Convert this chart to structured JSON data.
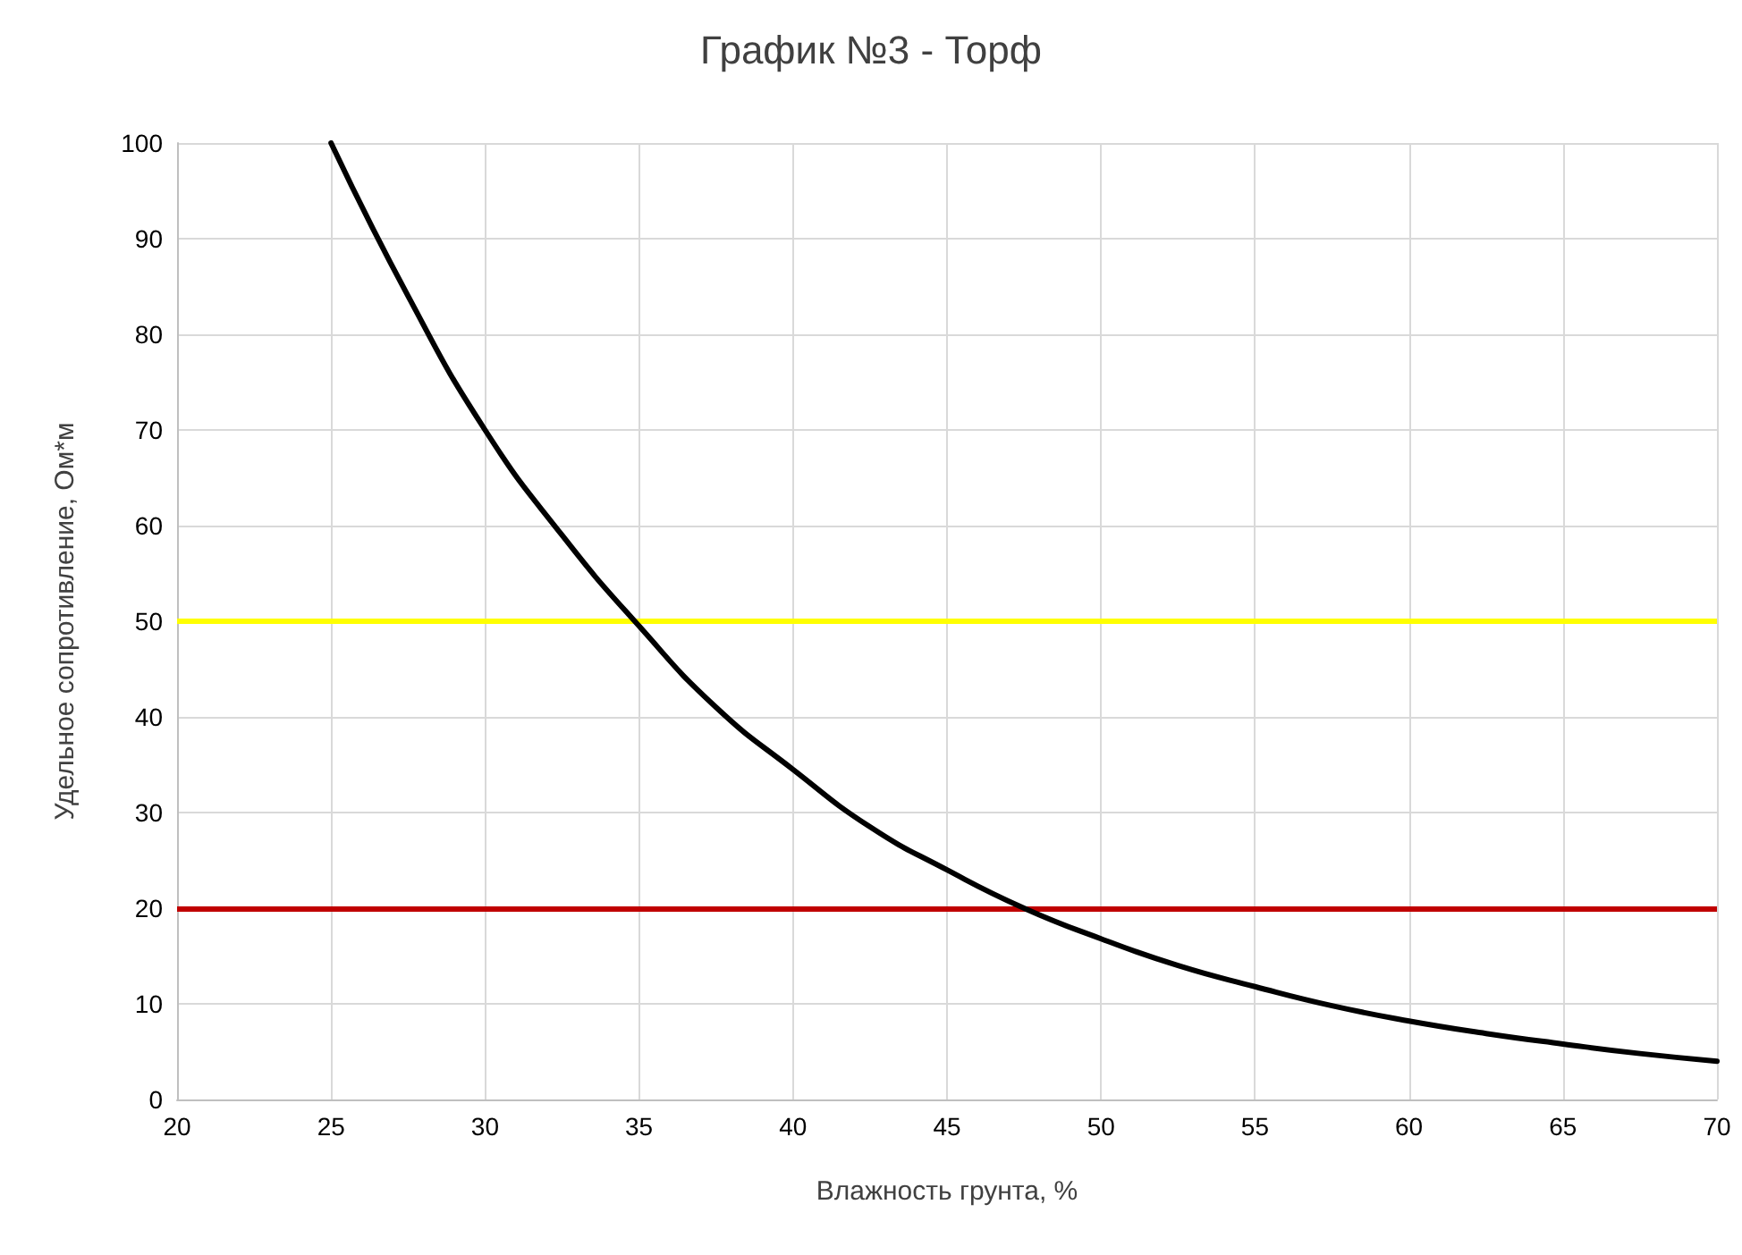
{
  "chart_data": {
    "type": "line",
    "title": "График №3 - Торф",
    "xlabel": "Влажность грунта, %",
    "ylabel": "Удельное сопротивление, Ом*м",
    "x": [
      25,
      27.5,
      30,
      32.5,
      35,
      37.5,
      40,
      42.5,
      45,
      47.5,
      50,
      52.5,
      55,
      57.5,
      60,
      62.5,
      65,
      67.5,
      70
    ],
    "series": [
      {
        "color": "#000000",
        "values": [
          100,
          84,
          70,
          59,
          49.5,
          41,
          34.5,
          28.5,
          24,
          20,
          16.8,
          14,
          11.8,
          9.8,
          8.2,
          6.9,
          5.8,
          4.8,
          4
        ]
      }
    ],
    "xlim": [
      20,
      70
    ],
    "xticks": [
      20,
      25,
      30,
      35,
      40,
      45,
      50,
      55,
      60,
      65,
      70
    ],
    "ylim": [
      0,
      100
    ],
    "yticks": [
      0,
      10,
      20,
      30,
      40,
      50,
      60,
      70,
      80,
      90,
      100
    ],
    "ref_lines": [
      {
        "axis": "y",
        "value": 50,
        "color": "#ffff00",
        "line_style": "solid"
      },
      {
        "axis": "y",
        "value": 20,
        "color": "#c00000",
        "line_style": "solid"
      }
    ],
    "grid": true,
    "marker": "none",
    "line_style": "solid"
  }
}
